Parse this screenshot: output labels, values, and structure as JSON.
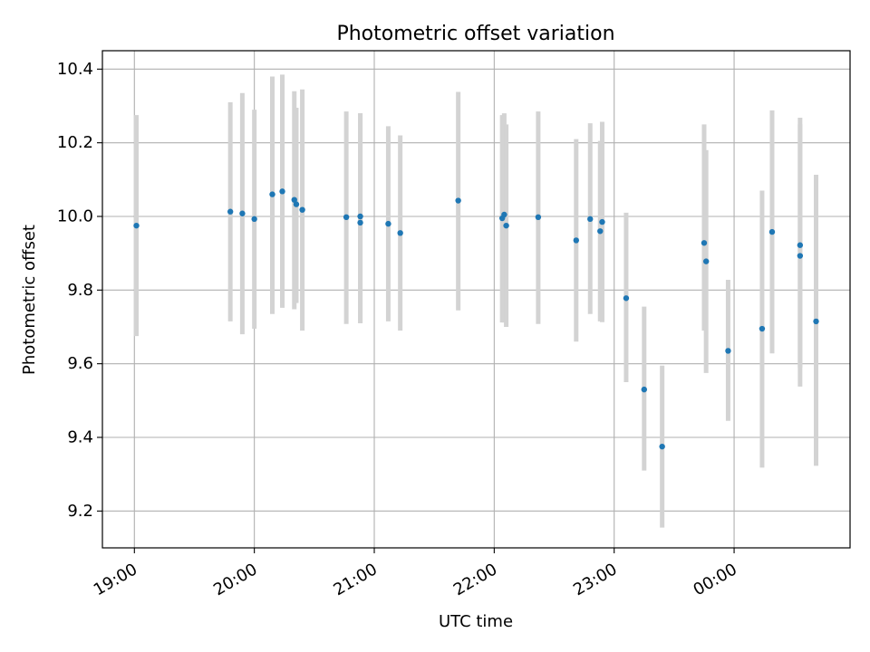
{
  "chart_data": {
    "type": "scatter",
    "title": "Photometric offset variation",
    "xlabel": "UTC time",
    "ylabel": "Photometric offset",
    "x_ticks": [
      {
        "t": 0,
        "label": "19:00"
      },
      {
        "t": 60,
        "label": "20:00"
      },
      {
        "t": 120,
        "label": "21:00"
      },
      {
        "t": 180,
        "label": "22:00"
      },
      {
        "t": 240,
        "label": "23:00"
      },
      {
        "t": 300,
        "label": "00:00"
      }
    ],
    "y_ticks": [
      9.2,
      9.4,
      9.6,
      9.8,
      10.0,
      10.2,
      10.4
    ],
    "xlim": [
      "18:44",
      "00:58"
    ],
    "ylim": [
      9.1,
      10.45
    ],
    "grid": true,
    "point_color": "#1f77b4",
    "errorbar_color": "#d3d3d3",
    "series": [
      {
        "points": [
          {
            "x": "19:01",
            "y": 9.975,
            "lo": 9.675,
            "hi": 10.275
          },
          {
            "x": "19:48",
            "y": 10.013,
            "lo": 9.715,
            "hi": 10.31
          },
          {
            "x": "19:54",
            "y": 10.008,
            "lo": 9.68,
            "hi": 10.335
          },
          {
            "x": "20:00",
            "y": 9.993,
            "lo": 9.695,
            "hi": 10.29
          },
          {
            "x": "20:09",
            "y": 10.06,
            "lo": 9.735,
            "hi": 10.38
          },
          {
            "x": "20:14",
            "y": 10.068,
            "lo": 9.752,
            "hi": 10.385
          },
          {
            "x": "20:20",
            "y": 10.045,
            "lo": 9.748,
            "hi": 10.34
          },
          {
            "x": "20:21",
            "y": 10.033,
            "lo": 9.765,
            "hi": 10.295
          },
          {
            "x": "20:24",
            "y": 10.018,
            "lo": 9.69,
            "hi": 10.345
          },
          {
            "x": "20:46",
            "y": 9.998,
            "lo": 9.708,
            "hi": 10.285
          },
          {
            "x": "20:53",
            "y": 10.0,
            "lo": 9.71,
            "hi": 10.28
          },
          {
            "x": "20:53",
            "y": 9.983,
            "lo": 9.71,
            "hi": 10.28
          },
          {
            "x": "21:07",
            "y": 9.98,
            "lo": 9.715,
            "hi": 10.245
          },
          {
            "x": "21:13",
            "y": 9.955,
            "lo": 9.69,
            "hi": 10.22
          },
          {
            "x": "21:42",
            "y": 10.043,
            "lo": 9.745,
            "hi": 10.338
          },
          {
            "x": "22:04",
            "y": 9.995,
            "lo": 9.712,
            "hi": 10.275
          },
          {
            "x": "22:05",
            "y": 10.005,
            "lo": 9.712,
            "hi": 10.28
          },
          {
            "x": "22:06",
            "y": 9.975,
            "lo": 9.7,
            "hi": 10.25
          },
          {
            "x": "22:22",
            "y": 9.998,
            "lo": 9.708,
            "hi": 10.285
          },
          {
            "x": "22:41",
            "y": 9.935,
            "lo": 9.66,
            "hi": 10.21
          },
          {
            "x": "22:48",
            "y": 9.993,
            "lo": 9.735,
            "hi": 10.253
          },
          {
            "x": "22:53",
            "y": 9.96,
            "lo": 9.715,
            "hi": 10.205
          },
          {
            "x": "22:54",
            "y": 9.985,
            "lo": 9.713,
            "hi": 10.257
          },
          {
            "x": "23:06",
            "y": 9.778,
            "lo": 9.55,
            "hi": 10.01
          },
          {
            "x": "23:15",
            "y": 9.53,
            "lo": 9.31,
            "hi": 9.755
          },
          {
            "x": "23:24",
            "y": 9.375,
            "lo": 9.155,
            "hi": 9.595
          },
          {
            "x": "23:45",
            "y": 9.928,
            "lo": 9.69,
            "hi": 10.25
          },
          {
            "x": "23:46",
            "y": 9.878,
            "lo": 9.575,
            "hi": 10.18
          },
          {
            "x": "23:57",
            "y": 9.635,
            "lo": 9.445,
            "hi": 9.828
          },
          {
            "x": "00:14",
            "y": 9.695,
            "lo": 9.318,
            "hi": 10.07
          },
          {
            "x": "00:19",
            "y": 9.958,
            "lo": 9.628,
            "hi": 10.288
          },
          {
            "x": "00:33",
            "y": 9.922,
            "lo": 9.59,
            "hi": 10.268
          },
          {
            "x": "00:33",
            "y": 9.893,
            "lo": 9.538,
            "hi": 10.25
          },
          {
            "x": "00:41",
            "y": 9.715,
            "lo": 9.323,
            "hi": 10.113
          }
        ]
      }
    ]
  }
}
